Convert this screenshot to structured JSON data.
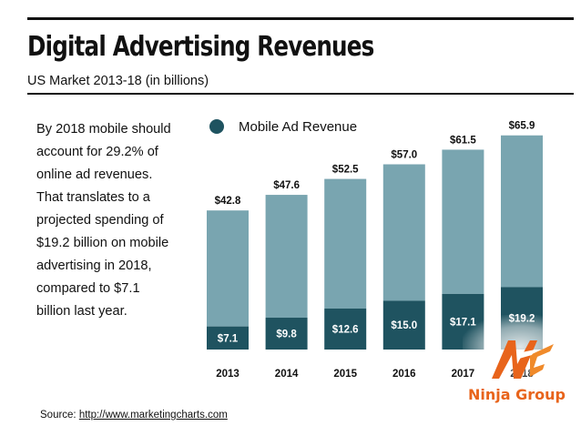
{
  "header": {
    "title": "Digital Advertising Revenues",
    "subtitle": "US Market 2013-18 (in billions)"
  },
  "blurb": {
    "lines": [
      "By 2018 mobile should",
      "account for 29.2% of",
      "online ad revenues.",
      "That translates to a",
      "projected spending of",
      "$19.2 billion on mobile",
      "advertising in 2018,",
      "compared to $7.1",
      "billion last year."
    ]
  },
  "legend": {
    "label": "Mobile Ad Revenue",
    "color": "#1f5360"
  },
  "source": {
    "prefix": "Source: ",
    "url_text": "http://www.marketingcharts.com"
  },
  "logo": {
    "text": "Ninja Group",
    "icon": "ninja-group-logo-icon",
    "color": "#e8641b"
  },
  "chart_data": {
    "type": "bar",
    "stacked": true,
    "categories": [
      "2013",
      "2014",
      "2015",
      "2016",
      "2017",
      "2018"
    ],
    "total_labels": [
      "$42.8",
      "$47.6",
      "$52.5",
      "$57.0",
      "$61.5",
      "$65.9"
    ],
    "mobile_labels": [
      "$7.1",
      "$9.8",
      "$12.6",
      "$15.0",
      "$17.1",
      "$19.2"
    ],
    "series": [
      {
        "name": "Mobile Ad Revenue",
        "values": [
          7.1,
          9.8,
          12.6,
          15.0,
          17.1,
          19.2
        ],
        "color": "#1f5360"
      },
      {
        "values": [
          35.7,
          37.8,
          39.9,
          42.0,
          44.4,
          46.7
        ],
        "color": "#79a5b0"
      }
    ],
    "totals": [
      42.8,
      47.6,
      52.5,
      57.0,
      61.5,
      65.9
    ],
    "ylim": [
      0,
      70
    ],
    "grid": false,
    "axes_visible": false
  }
}
